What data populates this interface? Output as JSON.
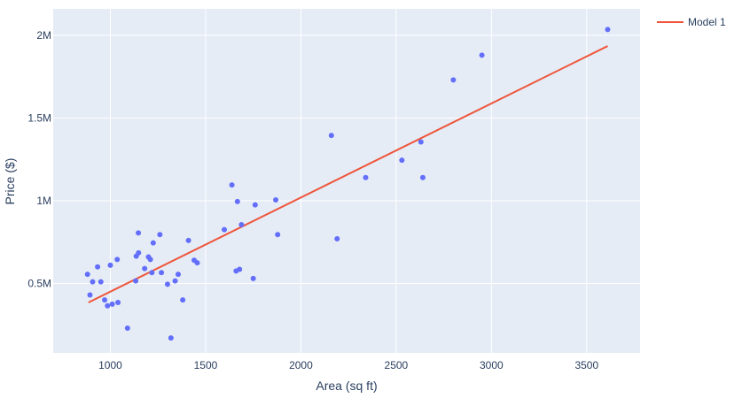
{
  "chart_data": {
    "type": "scatter",
    "title": "",
    "xlabel": "Area (sq ft)",
    "ylabel": "Price ($)",
    "xlim": [
      700,
      3780
    ],
    "ylim": [
      80000,
      2160000
    ],
    "x_ticks": [
      1000,
      1500,
      2000,
      2500,
      3000,
      3500
    ],
    "x_tick_labels": [
      "1000",
      "1500",
      "2000",
      "2500",
      "3000",
      "3500"
    ],
    "y_ticks": [
      500000,
      1000000,
      1500000,
      2000000
    ],
    "y_tick_labels": [
      "0.5M",
      "1M",
      "1.5M",
      "2M"
    ],
    "grid": true,
    "legend_position": "top-right",
    "colors": {
      "plot_background": "#e5ecf6",
      "grid": "#ffffff",
      "points": "#636efa",
      "model_line": "#ef553b",
      "text": "#2a3f5f"
    },
    "series": [
      {
        "type": "scatter",
        "x": [
          880,
          893,
          907,
          933,
          950,
          970,
          985,
          1000,
          1010,
          1036,
          1040,
          1090,
          1133,
          1136,
          1147,
          1148,
          1180,
          1200,
          1210,
          1218,
          1225,
          1260,
          1268,
          1300,
          1318,
          1340,
          1356,
          1380,
          1410,
          1440,
          1456,
          1598,
          1638,
          1660,
          1667,
          1678,
          1688,
          1750,
          1760,
          1868,
          1878,
          2160,
          2190,
          2340,
          2530,
          2630,
          2640,
          2800,
          2950,
          3610
        ],
        "y": [
          555000,
          430000,
          510000,
          600000,
          510000,
          400000,
          365000,
          610000,
          375000,
          645000,
          385000,
          230000,
          515000,
          665000,
          805000,
          685000,
          590000,
          660000,
          645000,
          565000,
          745000,
          795000,
          565000,
          495000,
          170000,
          515000,
          555000,
          400000,
          760000,
          640000,
          625000,
          825000,
          1095000,
          575000,
          995000,
          585000,
          855000,
          530000,
          975000,
          1005000,
          795000,
          1395000,
          770000,
          1140000,
          1245000,
          1355000,
          1140000,
          1730000,
          1880000,
          2035000
        ]
      },
      {
        "name": "Model 1",
        "type": "line",
        "x": [
          885,
          3610
        ],
        "y": [
          385000,
          1935000
        ]
      }
    ]
  }
}
